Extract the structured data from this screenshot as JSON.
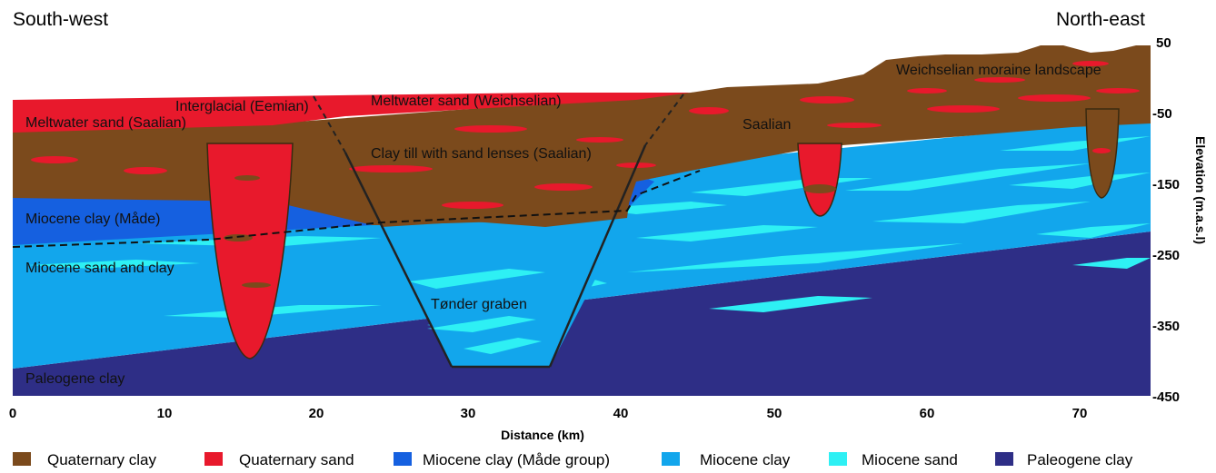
{
  "corners": {
    "left": "South-west",
    "right": "North-east"
  },
  "units": {
    "quaternary_clay": "Quaternary clay",
    "quaternary_sand": "Quaternary sand",
    "miocene_clay_made": "Miocene clay (Måde group)",
    "miocene_clay": "Miocene clay",
    "miocene_sand": "Miocene sand",
    "paleogene_clay": "Paleogene clay"
  },
  "labels": {
    "interglacial": "Interglacial (Eemian)",
    "meltwater_weichselian": "Meltwater sand (Weichselian)",
    "meltwater_saalian": "Meltwater sand (Saalian)",
    "clay_till": "Clay till with sand lenses (Saalian)",
    "saalian": "Saalian",
    "weichselian_moraine": "Weichselian moraine landscape",
    "miocene_clay_made": "Miocene clay (Måde)",
    "miocene_sand_clay": "Miocene sand and clay",
    "tonder_graben": "Tønder graben",
    "paleogene_clay": "Paleogene clay"
  },
  "x_axis": {
    "label": "Distance (km)",
    "ticks": [
      "0",
      "10",
      "20",
      "30",
      "40",
      "50",
      "60",
      "70"
    ]
  },
  "y_axis": {
    "label": "Elevation (m.a.s.l)",
    "ticks": [
      "50",
      "-50",
      "-150",
      "-250",
      "-350",
      "-450"
    ]
  },
  "legend": [
    {
      "key": "quaternary_clay",
      "label": "Quaternary clay",
      "color": "#7b4a1c"
    },
    {
      "key": "quaternary_sand",
      "label": "Quaternary sand",
      "color": "#e8192c"
    },
    {
      "key": "miocene_clay_made",
      "label": "Miocene clay (Måde group)",
      "color": "#1560e0"
    },
    {
      "key": "miocene_clay",
      "label": "Miocene clay",
      "color": "#12a6ec"
    },
    {
      "key": "miocene_sand",
      "label": "Miocene sand",
      "color": "#2ef0f4"
    },
    {
      "key": "paleogene_clay",
      "label": "Paleogene clay",
      "color": "#2e2e86"
    }
  ]
}
